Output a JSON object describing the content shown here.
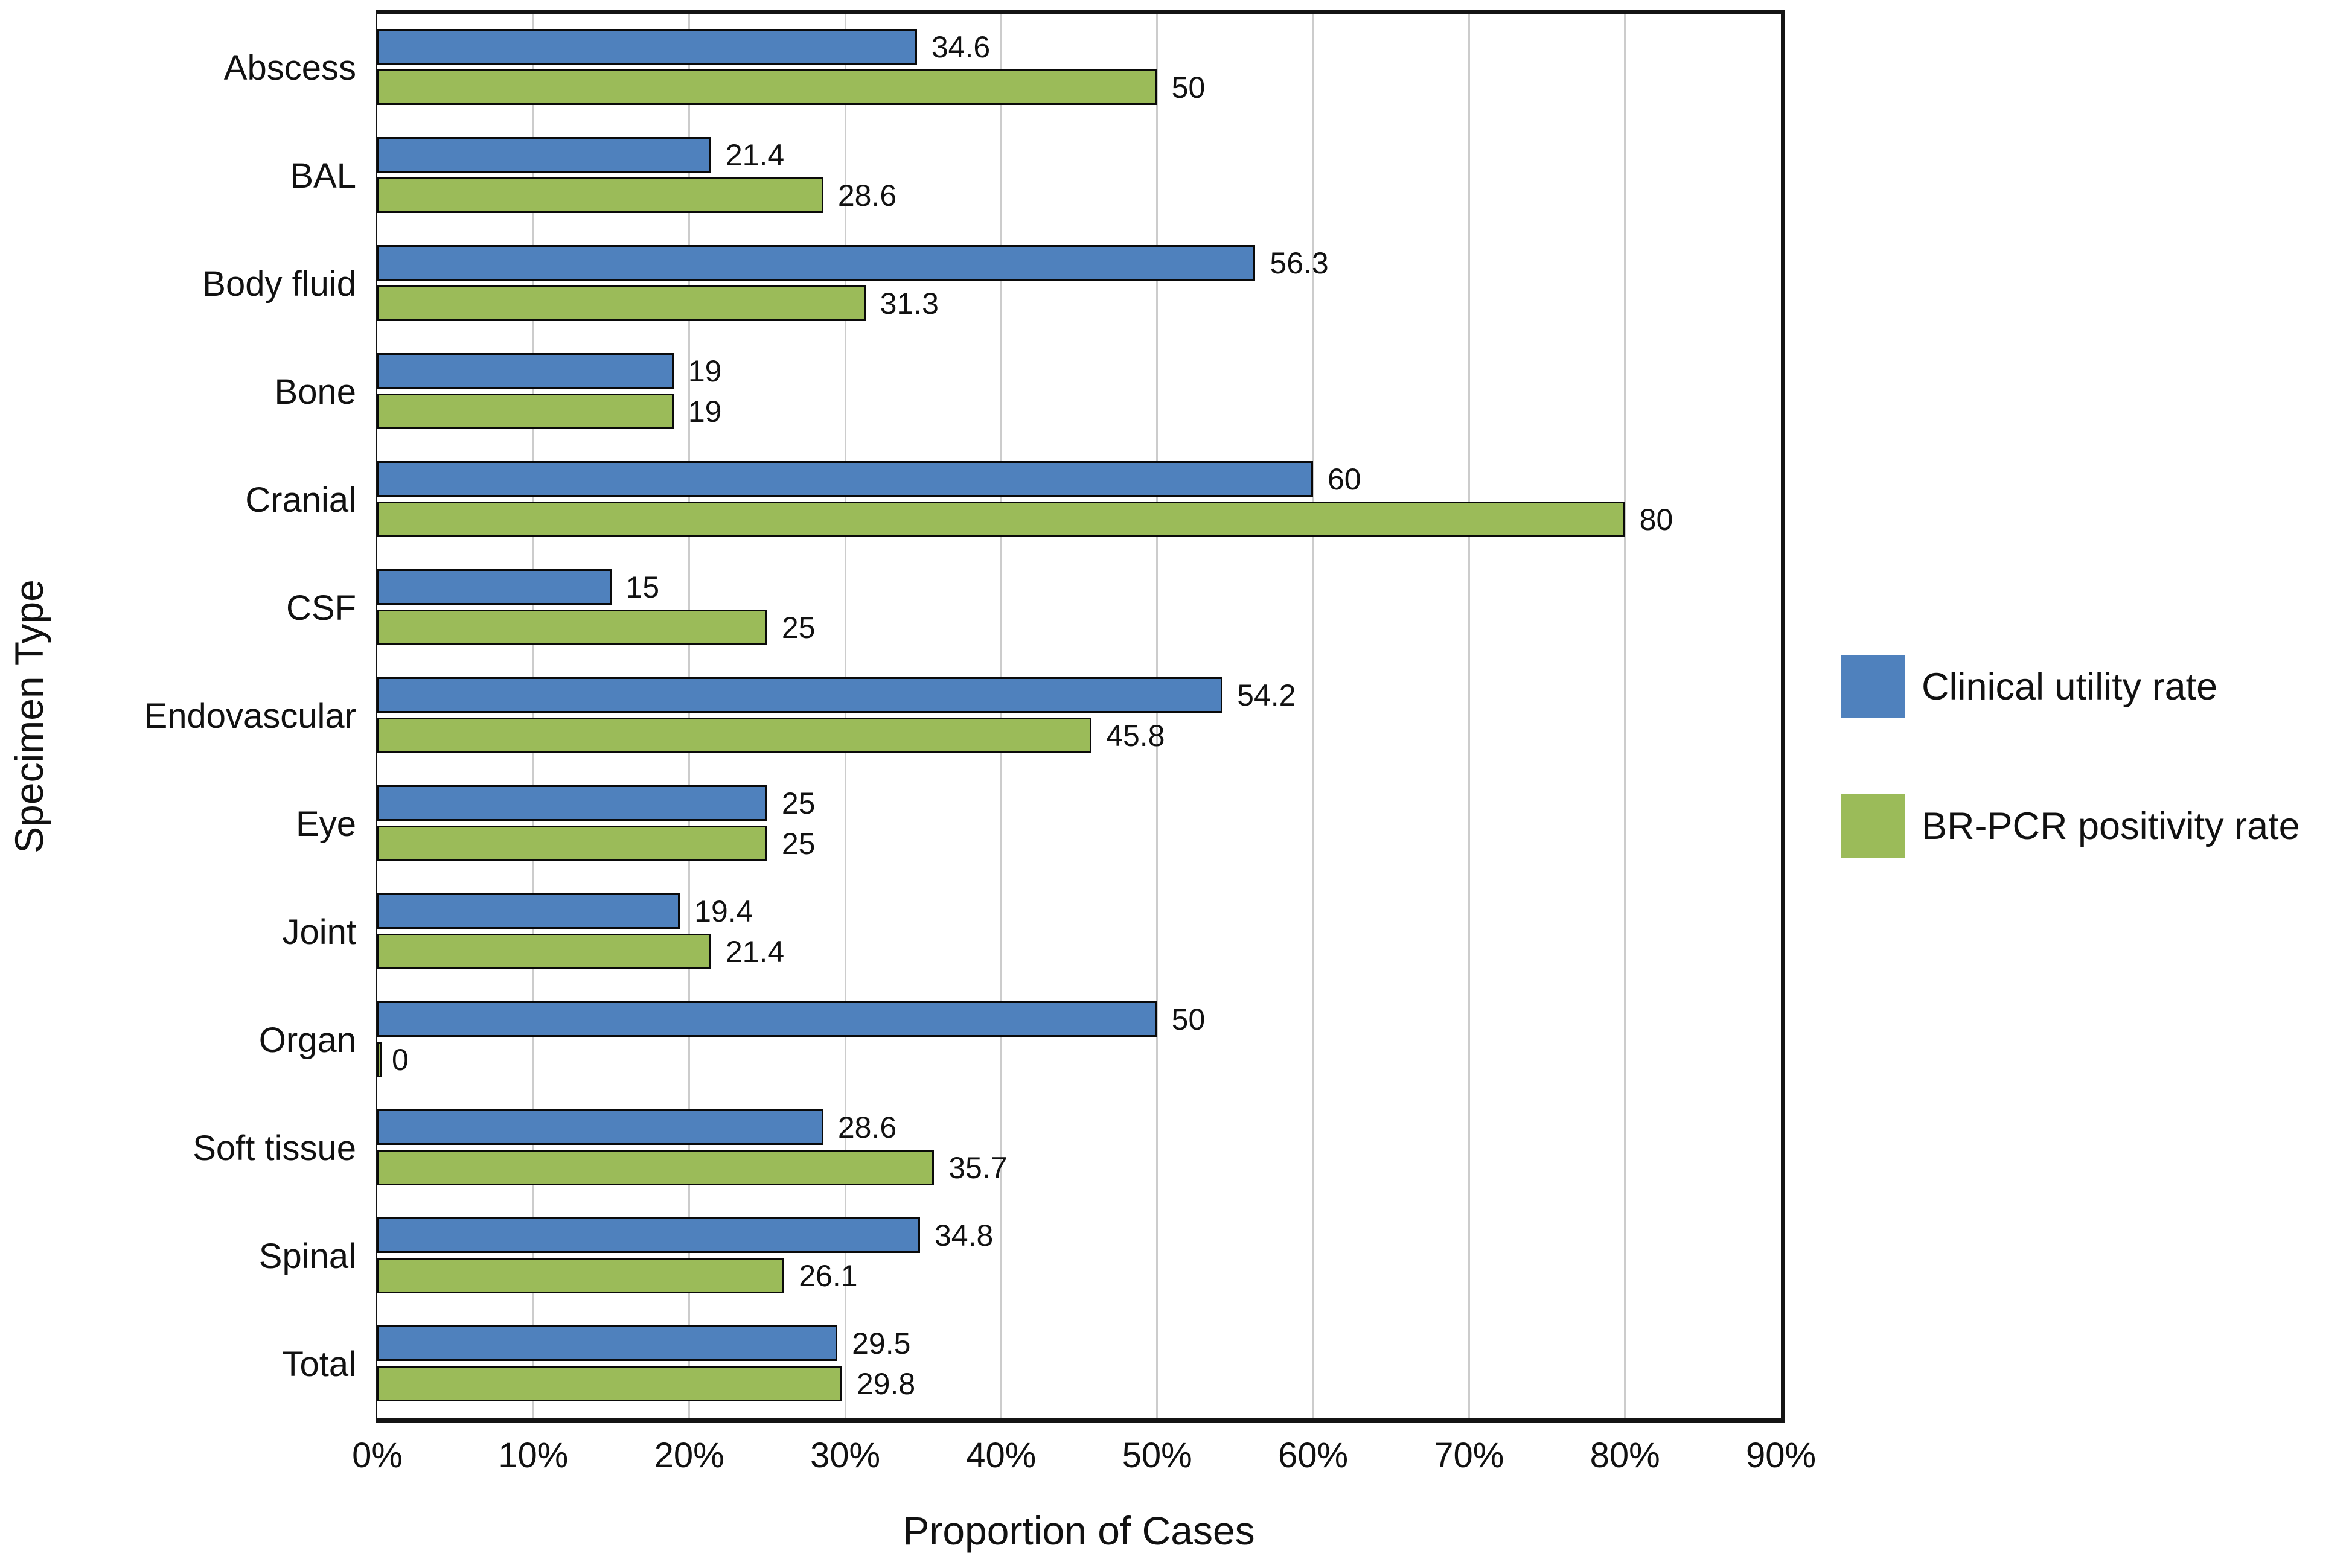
{
  "figure": {
    "background_color": "#ffffff",
    "frame_color": "#141414",
    "gridline_color": "#cccccc",
    "bar_border_color": "#0a0a0a",
    "text_color": "#111111"
  },
  "chart_data": {
    "type": "bar",
    "orientation": "horizontal",
    "title": "",
    "xlabel": "Proportion of Cases",
    "ylabel": "Specimen Type",
    "xlim": [
      0,
      90
    ],
    "grid": true,
    "legend_position": "right",
    "x_ticks": [
      0,
      10,
      20,
      30,
      40,
      50,
      60,
      70,
      80,
      90
    ],
    "x_tick_labels": [
      "0%",
      "10%",
      "20%",
      "30%",
      "40%",
      "50%",
      "60%",
      "70%",
      "80%",
      "90%"
    ],
    "categories": [
      "Abscess",
      "BAL",
      "Body fluid",
      "Bone",
      "Cranial",
      "CSF",
      "Endovascular",
      "Eye",
      "Joint",
      "Organ",
      "Soft tissue",
      "Spinal",
      "Total"
    ],
    "series": [
      {
        "name": "Clinical utility rate",
        "color": "#4F81BD",
        "values": [
          34.6,
          21.4,
          56.3,
          19,
          60,
          15,
          54.2,
          25,
          19.4,
          50,
          28.6,
          34.8,
          29.5
        ],
        "value_labels": [
          "34.6",
          "21.4",
          "56.3",
          "19",
          "60",
          "15",
          "54.2",
          "25",
          "19.4",
          "50",
          "28.6",
          "34.8",
          "29.5"
        ]
      },
      {
        "name": "BR-PCR positivity rate",
        "color": "#9BBB59",
        "values": [
          50,
          28.6,
          31.3,
          19,
          80,
          25,
          45.8,
          25,
          21.4,
          0,
          35.7,
          26.1,
          29.8
        ],
        "value_labels": [
          "50",
          "28.6",
          "31.3",
          "19",
          "80",
          "25",
          "45.8",
          "25",
          "21.4",
          "0",
          "35.7",
          "26.1",
          "29.8"
        ]
      }
    ]
  }
}
